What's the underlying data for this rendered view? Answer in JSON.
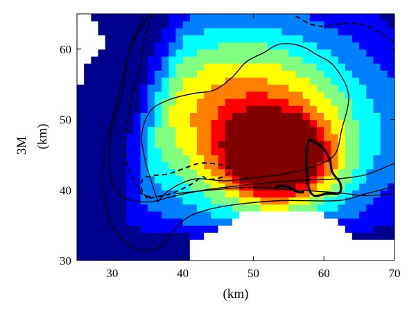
{
  "chart_data": {
    "type": "heatmap",
    "title": "",
    "xlabel": "(km)",
    "ylabel_top": "3M",
    "ylabel_bottom": "(km)",
    "xlim": [
      25,
      70
    ],
    "ylim": [
      30,
      65
    ],
    "xticks": [
      30,
      40,
      50,
      60,
      70
    ],
    "yticks": [
      30,
      40,
      50,
      60
    ],
    "grid": false,
    "colormap": "jet",
    "colormap_stops": [
      "#00008f",
      "#0000ff",
      "#0080ff",
      "#00ffff",
      "#80ff80",
      "#ffff00",
      "#ff8000",
      "#ff0000",
      "#800000"
    ],
    "no_data_color": "#ffffff",
    "peak": {
      "x": 53.5,
      "y": 43.5,
      "value": 1.0
    },
    "field_model": {
      "background_value": 0.0,
      "components": [
        {
          "x": 53.5,
          "y": 44.5,
          "sx": 5.2,
          "sy": 4.2,
          "amp": 0.8
        },
        {
          "x": 51.0,
          "y": 48.0,
          "sx": 15.0,
          "sy": 11.0,
          "amp": 0.55
        },
        {
          "x": 46.0,
          "y": 54.0,
          "sx": 11.0,
          "sy": 8.0,
          "amp": 0.25
        }
      ]
    },
    "no_data_regions": [
      {
        "name": "bottom-blank",
        "points": [
          [
            41,
            30
          ],
          [
            41,
            32.5
          ],
          [
            47.5,
            36
          ],
          [
            49,
            37.5
          ],
          [
            56,
            37.2
          ],
          [
            62,
            36
          ],
          [
            64.5,
            33.5
          ],
          [
            70,
            32.5
          ],
          [
            70,
            30
          ]
        ]
      },
      {
        "name": "top-left-blank",
        "points": [
          [
            25,
            65
          ],
          [
            25,
            55.5
          ],
          [
            26.5,
            55.5
          ],
          [
            26.5,
            58
          ],
          [
            28,
            60
          ],
          [
            29.5,
            61
          ],
          [
            28,
            63
          ],
          [
            27,
            65
          ]
        ]
      }
    ],
    "contours": [
      {
        "name": "solid-outer",
        "style": "solid",
        "width": 1.4,
        "points": [
          [
            36,
            66
          ],
          [
            33,
            61
          ],
          [
            31.5,
            56
          ],
          [
            30,
            50
          ],
          [
            28.8,
            45
          ],
          [
            28.8,
            40
          ],
          [
            29.5,
            36
          ],
          [
            31,
            33.5
          ],
          [
            33.5,
            31.6
          ],
          [
            36.5,
            31.8
          ],
          [
            38.5,
            34
          ],
          [
            40.5,
            36
          ],
          [
            43.5,
            37.2
          ],
          [
            48,
            38
          ],
          [
            54,
            38.5
          ],
          [
            62,
            38.5
          ],
          [
            66,
            39.5
          ],
          [
            70,
            40.5
          ]
        ]
      },
      {
        "name": "solid-big-loop",
        "style": "solid",
        "width": 1.4,
        "points": [
          [
            36.5,
            38.3
          ],
          [
            35.6,
            41
          ],
          [
            34.6,
            44.5
          ],
          [
            34.2,
            48
          ],
          [
            35.4,
            51.2
          ],
          [
            38,
            52.8
          ],
          [
            41.5,
            53.7
          ],
          [
            44.5,
            54.2
          ],
          [
            47,
            56
          ],
          [
            49,
            58.2
          ],
          [
            51.5,
            59.5
          ],
          [
            53.7,
            60.7
          ],
          [
            56.5,
            60.5
          ],
          [
            59,
            59.2
          ],
          [
            61.5,
            57.5
          ],
          [
            63.5,
            53.5
          ],
          [
            62.5,
            48.5
          ],
          [
            61.5,
            45
          ],
          [
            58.5,
            43.3
          ],
          [
            54,
            42.2
          ],
          [
            49.5,
            41.7
          ],
          [
            46,
            41.3
          ],
          [
            42,
            41.6
          ],
          [
            39.5,
            40.8
          ],
          [
            37.5,
            39.5
          ],
          [
            36.5,
            38.3
          ]
        ]
      },
      {
        "name": "solid-upper-band",
        "style": "solid",
        "width": 1.4,
        "points": [
          [
            35,
            66
          ],
          [
            32.5,
            60
          ],
          [
            31.5,
            54
          ],
          [
            30,
            49
          ],
          [
            29.6,
            44
          ],
          [
            30,
            41
          ],
          [
            31.5,
            39
          ],
          [
            35,
            38.3
          ],
          [
            39,
            39.2
          ],
          [
            43,
            40
          ],
          [
            47,
            40.5
          ],
          [
            52,
            41
          ],
          [
            57,
            41.4
          ],
          [
            62,
            41.6
          ],
          [
            66,
            42.2
          ],
          [
            70,
            43.8
          ]
        ]
      },
      {
        "name": "solid-lower-band",
        "style": "solid",
        "width": 1.4,
        "points": [
          [
            39,
            39.5
          ],
          [
            44,
            40
          ],
          [
            50,
            40.4
          ],
          [
            56,
            40
          ],
          [
            62,
            39.6
          ],
          [
            66,
            39.2
          ],
          [
            70,
            39.5
          ]
        ]
      },
      {
        "name": "dashed-left-arc",
        "style": "dashed",
        "width": 2.0,
        "points": [
          [
            36.2,
            66
          ],
          [
            34.7,
            62
          ],
          [
            34,
            58
          ],
          [
            33,
            54
          ],
          [
            32.2,
            50
          ],
          [
            31.8,
            47
          ],
          [
            31.8,
            45
          ],
          [
            32.3,
            43
          ],
          [
            33,
            41.5
          ],
          [
            34.2,
            39.5
          ],
          [
            35.5,
            39
          ]
        ]
      },
      {
        "name": "dashed-center-loop",
        "style": "dashed",
        "width": 2.0,
        "points": [
          [
            35,
            38.8
          ],
          [
            34.2,
            40
          ],
          [
            34.3,
            41.5
          ],
          [
            35.5,
            42
          ],
          [
            38,
            42.3
          ],
          [
            40,
            43
          ],
          [
            42.5,
            43.8
          ],
          [
            45.3,
            43.6
          ],
          [
            46.8,
            42.8
          ],
          [
            45.5,
            41.8
          ],
          [
            43.5,
            41.5
          ],
          [
            42.8,
            41.9
          ],
          [
            41.5,
            41
          ],
          [
            40,
            40.2
          ],
          [
            38,
            39.4
          ],
          [
            35,
            38.8
          ]
        ]
      },
      {
        "name": "dashed-top-right",
        "style": "dashed",
        "width": 2.0,
        "points": [
          [
            56,
            64.7
          ],
          [
            58,
            63.6
          ],
          [
            60,
            63.2
          ],
          [
            62.5,
            63.6
          ],
          [
            65.5,
            63.5
          ],
          [
            68,
            62.3
          ],
          [
            70,
            61
          ]
        ]
      },
      {
        "name": "thick-right-loop",
        "style": "solid",
        "width": 3.2,
        "points": [
          [
            58,
            47.2
          ],
          [
            59.8,
            46
          ],
          [
            60.8,
            44.4
          ],
          [
            61.2,
            42.5
          ],
          [
            62.3,
            41
          ],
          [
            62.2,
            39.6
          ],
          [
            60.5,
            39.5
          ],
          [
            58.6,
            39.2
          ],
          [
            57.8,
            40.5
          ],
          [
            57.6,
            42.5
          ],
          [
            57.5,
            44.5
          ],
          [
            57.6,
            46.2
          ],
          [
            58,
            47.2
          ]
        ]
      },
      {
        "name": "thick-small-arc",
        "style": "solid",
        "width": 3.2,
        "points": [
          [
            53,
            40.2
          ],
          [
            53.7,
            40.6
          ],
          [
            55,
            40.4
          ],
          [
            56.3,
            39.7
          ],
          [
            57.2,
            39.7
          ]
        ]
      }
    ]
  }
}
